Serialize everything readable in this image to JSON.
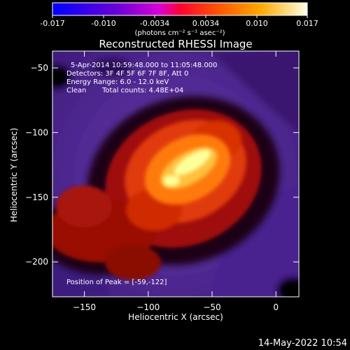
{
  "colorbar": {
    "tick_labels": [
      "-0.017",
      "-0.010",
      "-0.0034",
      "0.0034",
      "0.010",
      "0.017"
    ],
    "units": "(photons cm⁻² s⁻¹ asec⁻²)",
    "range": [
      -0.017,
      0.017
    ],
    "colors": [
      "#0000ff",
      "#8800cc",
      "#ff00ff",
      "#ff2200",
      "#ff9900",
      "#ffffdd"
    ]
  },
  "image": {
    "title": "Reconstructed RHESSI Image",
    "info_lines": [
      "5-Apr-2014 10:59:48.000 to 11:05:48.000",
      "Detectors: 3F 4F 5F 6F 7F 8F, Att 0",
      "Energy Range: 6.0 - 12.0 keV"
    ],
    "clean_label": "Clean",
    "total_counts": "Total counts: 4.48E+04",
    "peak_text": "Position of Peak = [-59,-122]",
    "colors": {
      "background": "#000000",
      "cool": "#5c2ca0",
      "hot_core": "#ffffc0"
    }
  },
  "axes": {
    "xlabel": "Heliocentric X (arcsec)",
    "ylabel": "Heliocentric Y (arcsec)",
    "xlim": [
      -175,
      18
    ],
    "ylim": [
      -227,
      -37
    ],
    "xticks": [
      {
        "value": -150,
        "label": "−150"
      },
      {
        "value": -100,
        "label": "−100"
      },
      {
        "value": -50,
        "label": "−50"
      },
      {
        "value": 0,
        "label": "0"
      }
    ],
    "yticks": [
      {
        "value": -50,
        "label": "−50"
      },
      {
        "value": -100,
        "label": "−100"
      },
      {
        "value": -150,
        "label": "−150"
      },
      {
        "value": -200,
        "label": "−200"
      }
    ]
  },
  "timestamp": "14-May-2022 10:54"
}
